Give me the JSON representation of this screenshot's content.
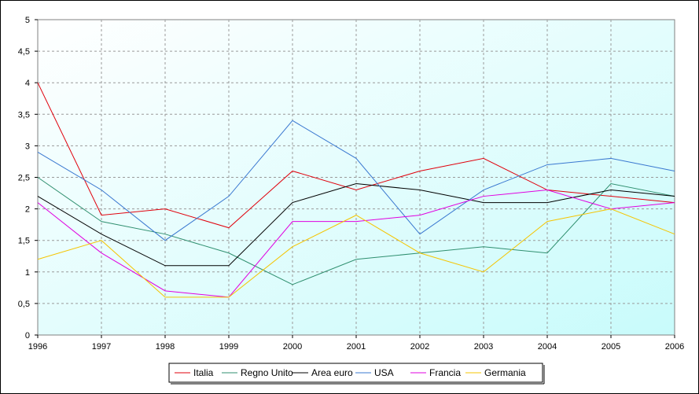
{
  "chart_data": {
    "type": "line",
    "title": "",
    "xlabel": "",
    "ylabel": "",
    "x": [
      "1996",
      "1997",
      "1998",
      "1999",
      "2000",
      "2001",
      "2002",
      "2003",
      "2004",
      "2005",
      "2006"
    ],
    "ylim": [
      0,
      5
    ],
    "yticks": [
      "0",
      "0,5",
      "1",
      "1,5",
      "2",
      "2,5",
      "3",
      "3,5",
      "4",
      "4,5",
      "5"
    ],
    "ytick_values": [
      0,
      0.5,
      1,
      1.5,
      2,
      2.5,
      3,
      3.5,
      4,
      4.5,
      5
    ],
    "grid": true,
    "legend_position": "bottom",
    "series": [
      {
        "name": "Italia",
        "color": "#e0000b",
        "values": [
          4.0,
          1.9,
          2.0,
          1.7,
          2.6,
          2.3,
          2.6,
          2.8,
          2.3,
          2.2,
          2.1
        ]
      },
      {
        "name": "Regno Unito",
        "color": "#2f8f6f",
        "values": [
          2.5,
          1.8,
          1.6,
          1.3,
          0.8,
          1.2,
          1.3,
          1.4,
          1.3,
          2.4,
          2.2
        ]
      },
      {
        "name": "Area euro",
        "color": "#000000",
        "values": [
          2.2,
          1.6,
          1.1,
          1.1,
          2.1,
          2.4,
          2.3,
          2.1,
          2.1,
          2.3,
          2.2
        ]
      },
      {
        "name": "USA",
        "color": "#3a78d0",
        "values": [
          2.9,
          2.3,
          1.5,
          2.2,
          3.4,
          2.8,
          1.6,
          2.3,
          2.7,
          2.8,
          2.6
        ]
      },
      {
        "name": "Francia",
        "color": "#e000e0",
        "values": [
          2.1,
          1.3,
          0.7,
          0.6,
          1.8,
          1.8,
          1.9,
          2.2,
          2.3,
          2.0,
          2.1
        ]
      },
      {
        "name": "Germania",
        "color": "#f5c400",
        "values": [
          1.2,
          1.5,
          0.6,
          0.6,
          1.4,
          1.9,
          1.3,
          1.0,
          1.8,
          2.0,
          1.6
        ]
      }
    ]
  }
}
